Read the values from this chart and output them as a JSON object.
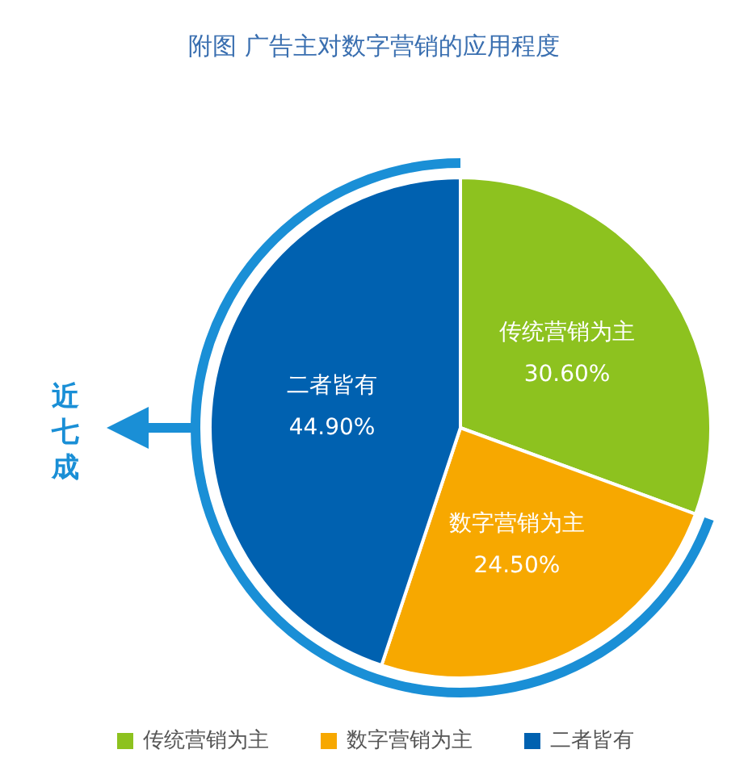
{
  "chart_data": {
    "type": "pie",
    "title": "附图 广告主对数字营销的应用程度",
    "categories": [
      "传统营销为主",
      "数字营销为主",
      "二者皆有"
    ],
    "values": [
      30.6,
      24.5,
      44.9
    ],
    "value_labels": [
      "30.60%",
      "24.50%",
      "44.90%"
    ],
    "colors": [
      "#8dc21f",
      "#f7a800",
      "#0061b0"
    ],
    "legend": "bottom",
    "annotations": [
      "近七成"
    ]
  }
}
